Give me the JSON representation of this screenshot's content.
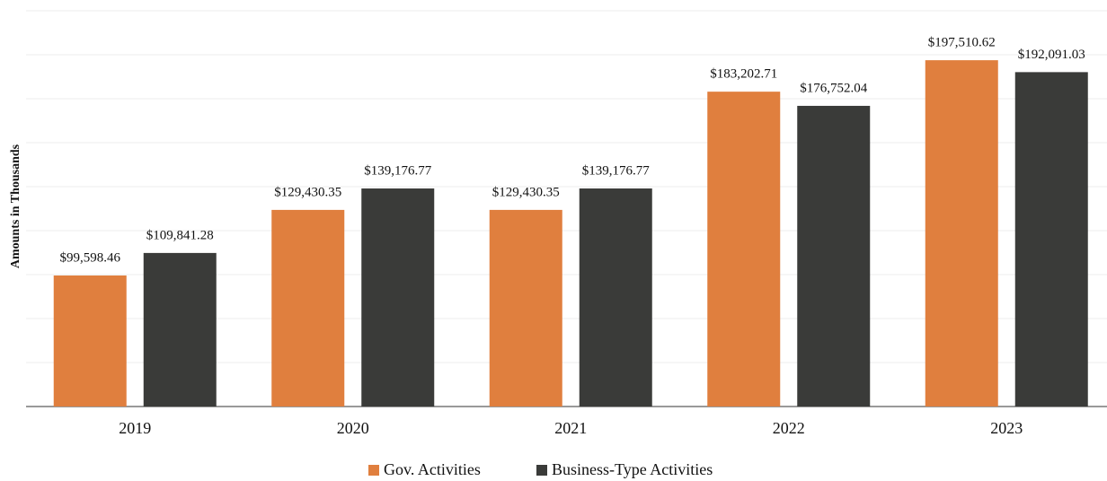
{
  "chart_data": {
    "type": "bar",
    "y_label": "Amounts in Thousands",
    "categories": [
      "2019",
      "2020",
      "2021",
      "2022",
      "2023"
    ],
    "series": [
      {
        "name": "Gov. Activities",
        "color": "#e07f3e",
        "values": [
          99598.46,
          129430.35,
          129430.35,
          183202.71,
          197510.62
        ],
        "value_labels": [
          "$99,598.46",
          "$129,430.35",
          "$129,430.35",
          "$183,202.71",
          "$197,510.62"
        ]
      },
      {
        "name": "Business-Type Activities",
        "color": "#3a3b39",
        "values": [
          109841.28,
          139176.77,
          139176.77,
          176752.04,
          192091.03
        ],
        "value_labels": [
          "$109,841.28",
          "$139,176.77",
          "$139,176.77",
          "$176,752.04",
          "$192,091.03"
        ]
      }
    ],
    "ylim": [
      40000,
      220000
    ],
    "yticks": [
      60000,
      80000,
      100000,
      120000,
      140000,
      160000,
      180000,
      200000,
      220000
    ],
    "grid": true,
    "legend": "bottom"
  }
}
